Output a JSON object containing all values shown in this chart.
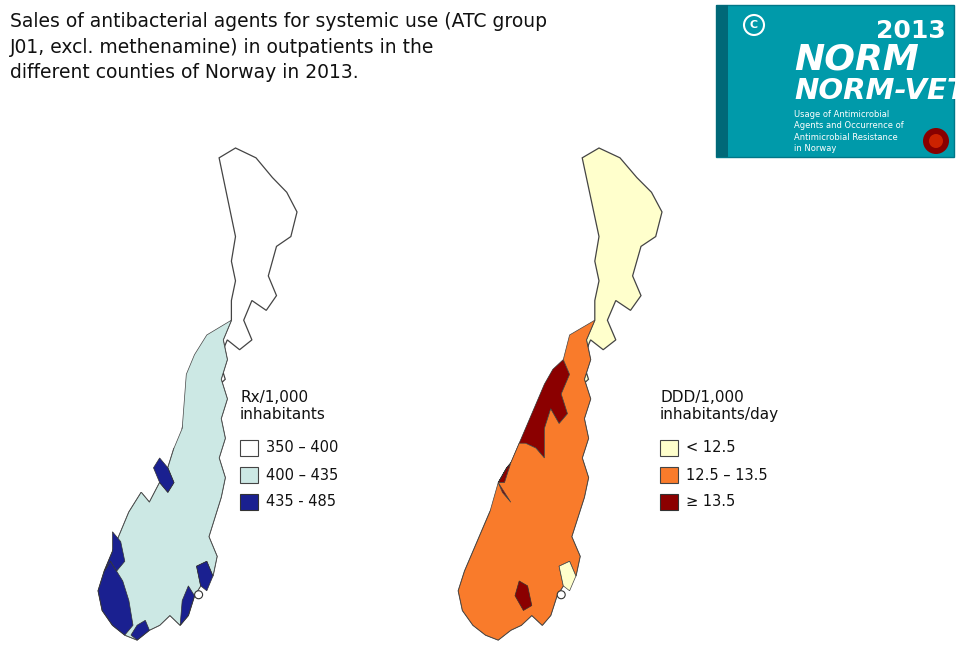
{
  "title_line1": "Sales of antibacterial agents for systemic use (ATC group",
  "title_line2": "J01, excl. methenamine) in outpatients in the",
  "title_line3": "different counties of Norway in 2013.",
  "title_fontsize": 13.5,
  "bg_color": "#ffffff",
  "map1_label_title": "Rx/1,000\ninhabitants",
  "map1_legend": [
    {
      "label": "350 – 400",
      "color": "#ffffff",
      "edgecolor": "#444444"
    },
    {
      "label": "400 – 435",
      "color": "#cce8e4",
      "edgecolor": "#444444"
    },
    {
      "label": "435 - 485",
      "color": "#1a2090",
      "edgecolor": "#333333"
    }
  ],
  "map2_label_title": "DDD/1,000\ninhabitants/day",
  "map2_legend": [
    {
      "label": "< 12.5",
      "color": "#ffffcc",
      "edgecolor": "#444444"
    },
    {
      "label": "12.5 – 13.5",
      "color": "#f97b2b",
      "edgecolor": "#444444"
    },
    {
      "label": "≥ 13.5",
      "color": "#8b0000",
      "edgecolor": "#333333"
    }
  ],
  "logo_bg": "#009aaa",
  "logo_text1": "NORM",
  "logo_text2": "NORM-VET",
  "logo_year": "2013",
  "logo_sub": "Usage of Antimicrobial\nAgents and Occurrence of\nAntimicrobial Resistance\nin Norway",
  "legend_fontsize": 10.5,
  "label_title_fontsize": 11
}
